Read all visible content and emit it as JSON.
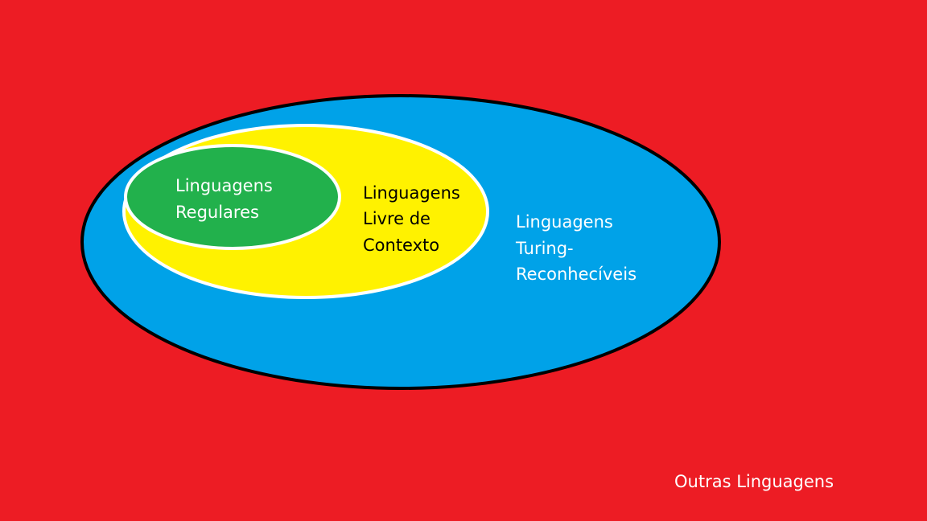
{
  "diagram": {
    "background_color": "#ed1c24",
    "sets": {
      "turing": {
        "lines": [
          "Linguagens",
          "Turing-",
          "Reconhecíveis"
        ],
        "fill": "#00a2e8",
        "stroke": "#000000",
        "text_color": "#ffffff"
      },
      "context_free": {
        "lines": [
          "Linguagens",
          "Livre de",
          "Contexto"
        ],
        "fill": "#fff200",
        "stroke": "#ffffff",
        "text_color": "#000000"
      },
      "regular": {
        "lines": [
          "Linguagens",
          "Regulares"
        ],
        "fill": "#22b14c",
        "stroke": "#ffffff",
        "text_color": "#ffffff"
      }
    },
    "outer_label": {
      "text": "Outras Linguagens",
      "text_color": "#ffffff"
    }
  }
}
